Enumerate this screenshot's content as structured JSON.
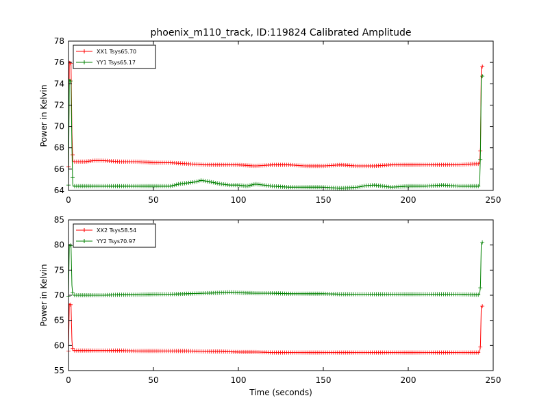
{
  "figure": {
    "title": "phoenix_m110_track, ID:119824 Calibrated Amplitude",
    "xlabel": "Time (seconds)"
  },
  "chart_data": [
    {
      "type": "line",
      "title": "phoenix_m110_track, ID:119824 Calibrated Amplitude",
      "xlabel": "",
      "ylabel": "Power in Kelvin",
      "xlim": [
        0,
        250
      ],
      "ylim": [
        64,
        78
      ],
      "xticks": [
        0,
        50,
        100,
        150,
        200,
        250
      ],
      "yticks": [
        64,
        66,
        68,
        70,
        72,
        74,
        76,
        78
      ],
      "legend_placement": "top-left",
      "marker": "+",
      "series": [
        {
          "name": "XX1 Tsys65.70",
          "color": "#ff0000",
          "x": [
            0,
            0.5,
            1,
            1.5,
            2,
            2.5,
            3,
            5,
            10,
            15,
            20,
            30,
            40,
            50,
            60,
            70,
            80,
            90,
            100,
            110,
            120,
            130,
            140,
            150,
            160,
            170,
            180,
            190,
            200,
            210,
            220,
            230,
            240,
            241.5,
            242,
            242.5,
            243,
            243.5,
            244
          ],
          "y": [
            66.2,
            76.1,
            76.0,
            75.8,
            69.5,
            66.8,
            66.7,
            66.7,
            66.7,
            66.8,
            66.8,
            66.7,
            66.7,
            66.6,
            66.6,
            66.5,
            66.4,
            66.4,
            66.4,
            66.3,
            66.4,
            66.4,
            66.3,
            66.3,
            66.4,
            66.3,
            66.3,
            66.4,
            66.4,
            66.4,
            66.4,
            66.4,
            66.5,
            66.5,
            66.6,
            68.0,
            75.5,
            75.6,
            75.7
          ]
        },
        {
          "name": "YY1 Tsys65.17",
          "color": "#008000",
          "x": [
            0,
            0.5,
            1,
            1.5,
            2,
            2.5,
            3,
            5,
            10,
            20,
            30,
            40,
            50,
            60,
            65,
            70,
            75,
            78,
            80,
            85,
            90,
            95,
            100,
            105,
            110,
            120,
            130,
            140,
            150,
            160,
            170,
            175,
            180,
            185,
            190,
            200,
            210,
            220,
            230,
            240,
            241.5,
            242,
            242.5,
            243,
            243.5,
            244
          ],
          "y": [
            64.5,
            74.4,
            74.3,
            74.2,
            68.0,
            64.5,
            64.4,
            64.4,
            64.4,
            64.4,
            64.4,
            64.4,
            64.4,
            64.4,
            64.6,
            64.7,
            64.8,
            64.95,
            64.9,
            64.75,
            64.6,
            64.5,
            64.5,
            64.4,
            64.6,
            64.4,
            64.3,
            64.3,
            64.3,
            64.2,
            64.3,
            64.45,
            64.5,
            64.4,
            64.3,
            64.4,
            64.4,
            64.5,
            64.4,
            64.4,
            64.4,
            64.5,
            67.5,
            74.5,
            74.7,
            74.8
          ]
        }
      ]
    },
    {
      "type": "line",
      "title": "",
      "xlabel": "Time (seconds)",
      "ylabel": "Power in Kelvin",
      "xlim": [
        0,
        250
      ],
      "ylim": [
        55,
        85
      ],
      "xticks": [
        0,
        50,
        100,
        150,
        200,
        250
      ],
      "yticks": [
        55,
        60,
        65,
        70,
        75,
        80,
        85
      ],
      "legend_placement": "top-left",
      "marker": "+",
      "series": [
        {
          "name": "XX2 Tsys58.54",
          "color": "#ff0000",
          "x": [
            0,
            0.5,
            1,
            1.5,
            2,
            2.5,
            3,
            5,
            10,
            20,
            30,
            40,
            50,
            60,
            70,
            80,
            90,
            100,
            110,
            120,
            130,
            140,
            150,
            160,
            170,
            180,
            190,
            200,
            210,
            220,
            230,
            240,
            241.5,
            242,
            242.5,
            243,
            243.5,
            244
          ],
          "y": [
            58.9,
            68.3,
            68.2,
            68.0,
            61.0,
            59.0,
            59.0,
            59.0,
            59.0,
            59.0,
            59.0,
            58.9,
            58.9,
            58.9,
            58.9,
            58.8,
            58.8,
            58.7,
            58.7,
            58.6,
            58.6,
            58.6,
            58.6,
            58.6,
            58.6,
            58.6,
            58.6,
            58.6,
            58.6,
            58.6,
            58.6,
            58.6,
            58.6,
            58.6,
            60.0,
            67.7,
            67.8,
            67.9
          ]
        },
        {
          "name": "YY2 Tsys70.97",
          "color": "#008000",
          "x": [
            0,
            0.5,
            1,
            1.5,
            2,
            2.5,
            3,
            5,
            10,
            20,
            30,
            40,
            50,
            60,
            70,
            80,
            90,
            95,
            100,
            110,
            120,
            130,
            140,
            150,
            160,
            170,
            180,
            190,
            200,
            210,
            220,
            230,
            240,
            241.5,
            242,
            242.5,
            243,
            243.5,
            244
          ],
          "y": [
            69.8,
            80.1,
            80.0,
            79.8,
            72.0,
            70.1,
            70.0,
            70.0,
            70.0,
            70.0,
            70.1,
            70.1,
            70.2,
            70.2,
            70.3,
            70.4,
            70.5,
            70.6,
            70.5,
            70.4,
            70.4,
            70.3,
            70.3,
            70.3,
            70.2,
            70.2,
            70.2,
            70.2,
            70.2,
            70.2,
            70.2,
            70.2,
            70.1,
            70.1,
            70.2,
            71.8,
            80.2,
            80.5,
            80.6
          ]
        }
      ]
    }
  ]
}
